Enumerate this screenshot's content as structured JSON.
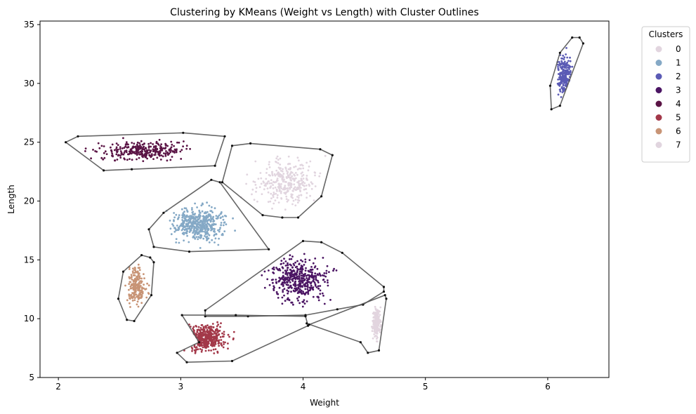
{
  "chart_data": {
    "type": "scatter",
    "title": "Clustering by KMeans (Weight vs Length) with Cluster Outlines",
    "xlabel": "Weight",
    "ylabel": "Length",
    "xlim": [
      1.85,
      6.5
    ],
    "ylim": [
      5.0,
      35.3
    ],
    "xticks": [
      2,
      3,
      4,
      5,
      6
    ],
    "yticks": [
      5,
      10,
      15,
      20,
      25,
      30,
      35
    ],
    "grid": false,
    "legend": {
      "title": "Clusters",
      "placement": "outside-top-right",
      "entries": [
        {
          "label": "0",
          "color": "#e2d5df"
        },
        {
          "label": "1",
          "color": "#85a9c6"
        },
        {
          "label": "2",
          "color": "#5b5bb5"
        },
        {
          "label": "3",
          "color": "#4b1563"
        },
        {
          "label": "4",
          "color": "#5a1445"
        },
        {
          "label": "5",
          "color": "#a33849"
        },
        {
          "label": "6",
          "color": "#c89476"
        },
        {
          "label": "7",
          "color": "#e1d5df"
        }
      ]
    },
    "clusters": [
      {
        "label": "7",
        "color": "#e1d5df",
        "center": [
          3.88,
          21.5
        ],
        "spread": [
          0.22,
          1.6
        ],
        "n": 320,
        "hull": [
          [
            3.42,
            24.7
          ],
          [
            3.57,
            24.9
          ],
          [
            4.14,
            24.4
          ],
          [
            4.24,
            23.9
          ],
          [
            4.15,
            20.4
          ],
          [
            3.96,
            18.6
          ],
          [
            3.83,
            18.6
          ],
          [
            3.67,
            18.8
          ],
          [
            3.34,
            21.6
          ]
        ]
      },
      {
        "label": "1",
        "color": "#85a9c6",
        "center": [
          3.15,
          18.0
        ],
        "spread": [
          0.17,
          1.1
        ],
        "n": 480,
        "hull": [
          [
            3.25,
            21.8
          ],
          [
            3.32,
            21.6
          ],
          [
            3.72,
            15.9
          ],
          [
            3.07,
            15.7
          ],
          [
            2.78,
            16.1
          ],
          [
            2.74,
            17.6
          ],
          [
            2.86,
            19.0
          ]
        ]
      },
      {
        "label": "4",
        "color": "#5a1445",
        "center": [
          2.7,
          24.3
        ],
        "spread": [
          0.28,
          0.6
        ],
        "n": 300,
        "hull": [
          [
            2.06,
            25.0
          ],
          [
            2.16,
            25.5
          ],
          [
            3.02,
            25.8
          ],
          [
            3.36,
            25.5
          ],
          [
            3.28,
            23.0
          ],
          [
            2.6,
            22.7
          ],
          [
            2.37,
            22.6
          ]
        ]
      },
      {
        "label": "2",
        "color": "#5b5bb5",
        "center": [
          6.14,
          30.6
        ],
        "spread": [
          0.05,
          1.5
        ],
        "n": 200,
        "hull": [
          [
            6.1,
            32.6
          ],
          [
            6.2,
            33.9
          ],
          [
            6.26,
            33.9
          ],
          [
            6.29,
            33.4
          ],
          [
            6.1,
            28.1
          ],
          [
            6.03,
            27.8
          ],
          [
            6.02,
            29.8
          ]
        ]
      },
      {
        "label": "6",
        "color": "#c89476",
        "center": [
          2.64,
          12.8
        ],
        "spread": [
          0.06,
          1.3
        ],
        "n": 200,
        "hull": [
          [
            2.68,
            15.4
          ],
          [
            2.75,
            15.2
          ],
          [
            2.78,
            14.8
          ],
          [
            2.76,
            12.0
          ],
          [
            2.62,
            9.8
          ],
          [
            2.56,
            9.9
          ],
          [
            2.49,
            11.7
          ],
          [
            2.53,
            14.0
          ]
        ]
      },
      {
        "label": "3",
        "color": "#4b1563",
        "center": [
          3.96,
          13.3
        ],
        "spread": [
          0.18,
          1.5
        ],
        "n": 420,
        "hull": [
          [
            3.2,
            10.7
          ],
          [
            4.0,
            16.6
          ],
          [
            4.15,
            16.5
          ],
          [
            4.32,
            15.6
          ],
          [
            4.66,
            12.7
          ],
          [
            4.66,
            12.3
          ],
          [
            4.49,
            11.2
          ],
          [
            4.28,
            10.8
          ],
          [
            4.02,
            10.3
          ],
          [
            3.55,
            10.2
          ],
          [
            3.2,
            10.2
          ]
        ]
      },
      {
        "label": "5",
        "color": "#a33849",
        "center": [
          3.2,
          8.4
        ],
        "spread": [
          0.15,
          0.9
        ],
        "n": 380,
        "hull": [
          [
            3.01,
            10.3
          ],
          [
            3.45,
            10.3
          ],
          [
            4.02,
            10.2
          ],
          [
            4.04,
            9.4
          ],
          [
            3.42,
            6.4
          ],
          [
            3.05,
            6.3
          ],
          [
            2.97,
            7.1
          ],
          [
            3.15,
            8.0
          ]
        ]
      },
      {
        "label": "0",
        "color": "#e2d5df",
        "center": [
          4.6,
          9.6
        ],
        "spread": [
          0.03,
          1.0
        ],
        "n": 200,
        "hull": [
          [
            4.03,
            9.6
          ],
          [
            4.05,
            9.5
          ],
          [
            4.67,
            12.0
          ],
          [
            4.68,
            11.7
          ],
          [
            4.62,
            7.3
          ],
          [
            4.53,
            7.1
          ],
          [
            4.47,
            8.0
          ]
        ]
      }
    ]
  }
}
